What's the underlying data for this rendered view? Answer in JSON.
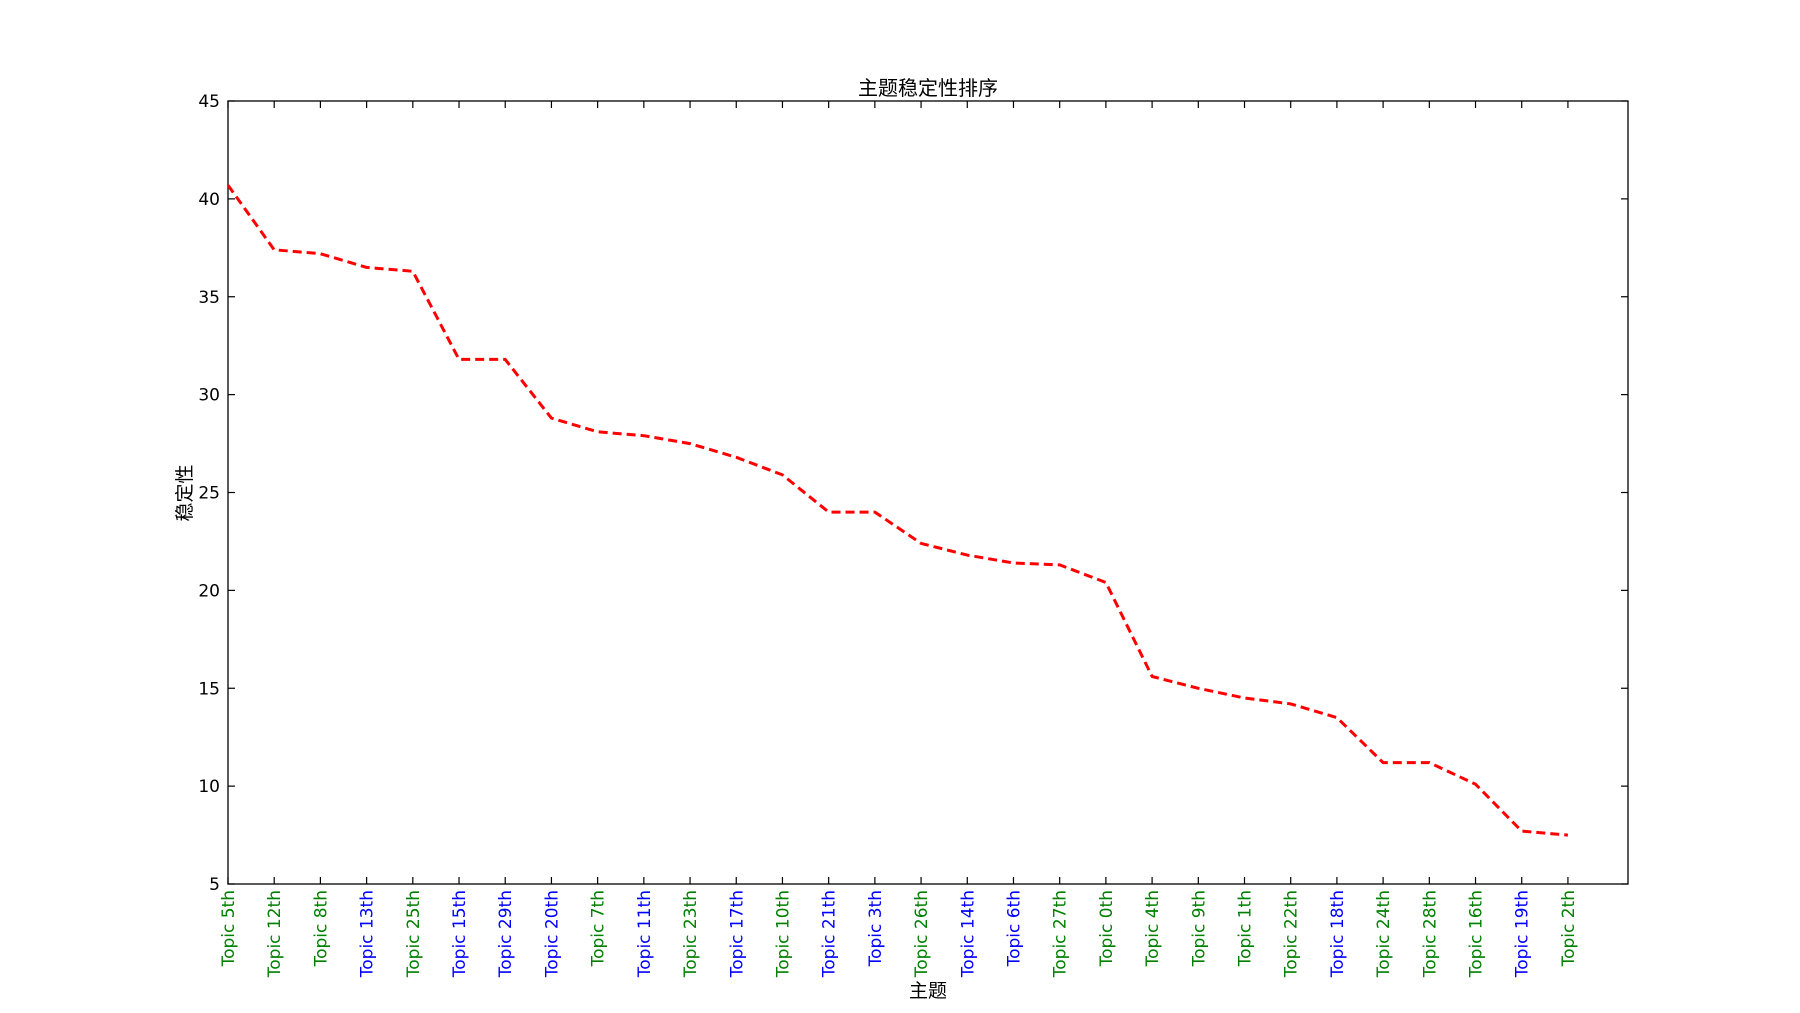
{
  "chart_data": {
    "type": "line",
    "title": "主题稳定性排序",
    "xlabel": "主题",
    "ylabel": "稳定性",
    "ylim": [
      5,
      45
    ],
    "yticks": [
      5,
      10,
      15,
      20,
      25,
      30,
      35,
      40,
      45
    ],
    "grid": false,
    "line_color": "#ff0000",
    "line_style": "dashed",
    "tick_label_colors": {
      "green": "#008000",
      "blue": "#0000ff"
    },
    "categories": [
      "Topic 5th",
      "Topic 12th",
      "Topic 8th",
      "Topic 13th",
      "Topic 25th",
      "Topic 15th",
      "Topic 29th",
      "Topic 20th",
      "Topic 7th",
      "Topic 11th",
      "Topic 23th",
      "Topic 17th",
      "Topic 10th",
      "Topic 21th",
      "Topic 3th",
      "Topic 26th",
      "Topic 14th",
      "Topic 6th",
      "Topic 27th",
      "Topic 0th",
      "Topic 4th",
      "Topic 9th",
      "Topic 1th",
      "Topic 22th",
      "Topic 18th",
      "Topic 24th",
      "Topic 28th",
      "Topic 16th",
      "Topic 19th",
      "Topic 2th"
    ],
    "category_colors": [
      "green",
      "green",
      "green",
      "blue",
      "green",
      "blue",
      "blue",
      "blue",
      "green",
      "blue",
      "green",
      "blue",
      "green",
      "blue",
      "blue",
      "green",
      "blue",
      "blue",
      "green",
      "green",
      "green",
      "green",
      "green",
      "green",
      "blue",
      "green",
      "green",
      "green",
      "blue",
      "green"
    ],
    "values": [
      40.7,
      37.4,
      37.2,
      36.5,
      36.3,
      31.8,
      31.8,
      28.8,
      28.1,
      27.9,
      27.5,
      26.8,
      25.9,
      24.0,
      24.0,
      22.4,
      21.8,
      21.4,
      21.3,
      20.4,
      15.6,
      15.0,
      14.5,
      14.2,
      13.5,
      11.2,
      11.2,
      10.1,
      7.7,
      7.5
    ]
  }
}
